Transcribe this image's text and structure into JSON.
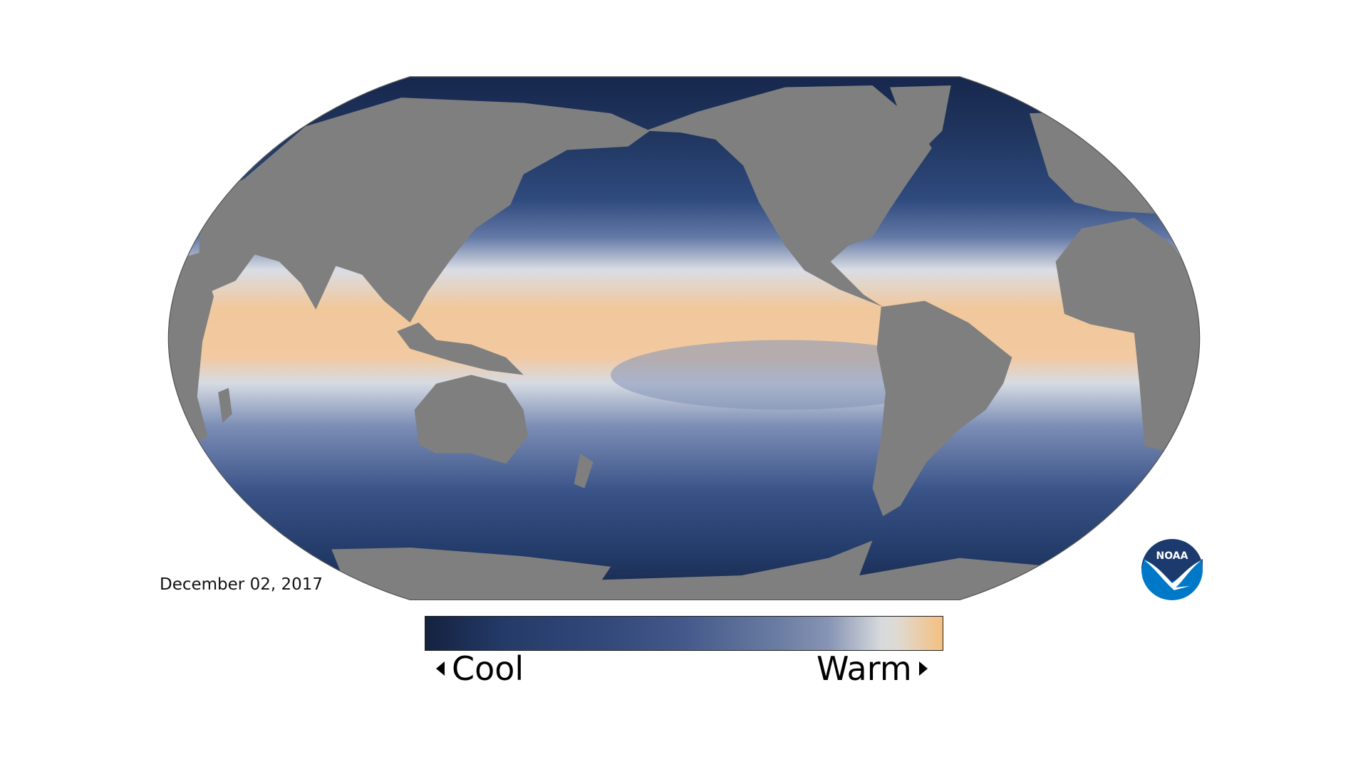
{
  "map": {
    "date": "December 02, 2017",
    "colors": {
      "land": "#7f7f7f",
      "cool": "#15223f",
      "warm": "#f5c080",
      "neutral": "#d8dbdd"
    }
  },
  "legend": {
    "cool_label": "Cool",
    "warm_label": "Warm",
    "cool_arrow_icon": "triangle-left-icon",
    "warm_arrow_icon": "triangle-right-icon"
  },
  "logo": {
    "text": "NOAA",
    "colors": {
      "top": "#1c3a6e",
      "bottom": "#0078c8"
    }
  }
}
